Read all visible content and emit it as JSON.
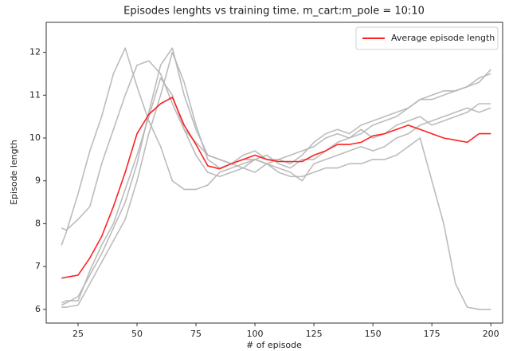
{
  "chart_data": {
    "type": "line",
    "title": "Episodes lenghts vs training time. m_cart:m_pole = 10:10",
    "xlabel": "# of episode",
    "ylabel": "Episode length",
    "x": [
      18,
      20,
      25,
      30,
      35,
      40,
      45,
      50,
      55,
      60,
      65,
      70,
      75,
      80,
      85,
      90,
      95,
      100,
      105,
      110,
      115,
      120,
      125,
      130,
      135,
      140,
      145,
      150,
      155,
      160,
      165,
      170,
      175,
      180,
      185,
      190,
      195,
      200
    ],
    "series": [
      {
        "color": "#b5b5b5",
        "values": [
          7.5,
          7.8,
          8.7,
          9.7,
          10.5,
          11.5,
          12.1,
          11.2,
          10.4,
          9.8,
          9.0,
          8.8,
          8.8,
          8.9,
          9.2,
          9.3,
          9.4,
          9.5,
          9.4,
          9.2,
          9.1,
          9.1,
          9.2,
          9.3,
          9.3,
          9.4,
          9.4,
          9.5,
          9.5,
          9.6,
          9.8,
          10.0,
          9.0,
          8.0,
          6.6,
          6.05,
          6.0,
          6.0
        ]
      },
      {
        "color": "#b5b5b5",
        "values": [
          7.9,
          7.85,
          8.1,
          8.4,
          9.4,
          10.2,
          11.0,
          11.7,
          11.8,
          11.5,
          10.8,
          10.2,
          9.9,
          9.6,
          9.5,
          9.4,
          9.5,
          9.5,
          9.6,
          9.4,
          9.3,
          9.5,
          9.5,
          9.7,
          9.9,
          10.0,
          10.1,
          10.3,
          10.4,
          10.5,
          10.7,
          10.9,
          11.0,
          11.1,
          11.1,
          11.2,
          11.4,
          11.5
        ]
      },
      {
        "color": "#b5b5b5",
        "values": [
          6.1,
          6.15,
          6.3,
          6.8,
          7.3,
          7.9,
          8.5,
          9.4,
          10.6,
          11.7,
          12.1,
          11.0,
          10.2,
          9.6,
          9.5,
          9.4,
          9.6,
          9.7,
          9.5,
          9.5,
          9.4,
          9.6,
          9.9,
          10.1,
          10.2,
          10.1,
          10.3,
          10.4,
          10.5,
          10.6,
          10.7,
          10.9,
          10.9,
          11.0,
          11.1,
          11.2,
          11.3,
          11.6
        ]
      },
      {
        "color": "#b5b5b5",
        "values": [
          6.05,
          6.05,
          6.1,
          6.6,
          7.1,
          7.6,
          8.1,
          9.0,
          10.1,
          11.0,
          12.0,
          11.3,
          10.3,
          9.5,
          9.3,
          9.4,
          9.3,
          9.5,
          9.4,
          9.5,
          9.6,
          9.7,
          9.8,
          10.0,
          10.1,
          10.0,
          10.2,
          10.0,
          10.1,
          10.3,
          10.4,
          10.5,
          10.3,
          10.4,
          10.5,
          10.6,
          10.8,
          10.8
        ]
      },
      {
        "color": "#b5b5b5",
        "values": [
          6.15,
          6.2,
          6.2,
          6.9,
          7.5,
          8.0,
          8.8,
          9.6,
          10.5,
          11.4,
          11.0,
          10.2,
          9.6,
          9.2,
          9.1,
          9.2,
          9.3,
          9.2,
          9.4,
          9.3,
          9.2,
          9.0,
          9.4,
          9.5,
          9.6,
          9.7,
          9.8,
          9.7,
          9.8,
          10.0,
          10.1,
          10.3,
          10.4,
          10.5,
          10.6,
          10.7,
          10.6,
          10.7
        ]
      },
      {
        "name": "Average episode length",
        "color": "#ff2020",
        "values": [
          6.73,
          6.75,
          6.8,
          7.2,
          7.7,
          8.4,
          9.2,
          10.1,
          10.55,
          10.8,
          10.95,
          10.3,
          9.85,
          9.35,
          9.28,
          9.4,
          9.5,
          9.6,
          9.5,
          9.45,
          9.45,
          9.45,
          9.6,
          9.7,
          9.85,
          9.85,
          9.9,
          10.05,
          10.1,
          10.2,
          10.3,
          10.2,
          10.1,
          10.0,
          9.95,
          9.9,
          10.1,
          10.1
        ]
      }
    ],
    "xlim": [
      11.5,
      205
    ],
    "ylim": [
      5.68,
      12.7
    ],
    "xticks": [
      25,
      50,
      75,
      100,
      125,
      150,
      175,
      200
    ],
    "yticks": [
      6,
      7,
      8,
      9,
      10,
      11,
      12
    ],
    "grid": false,
    "legend": "upper right"
  }
}
